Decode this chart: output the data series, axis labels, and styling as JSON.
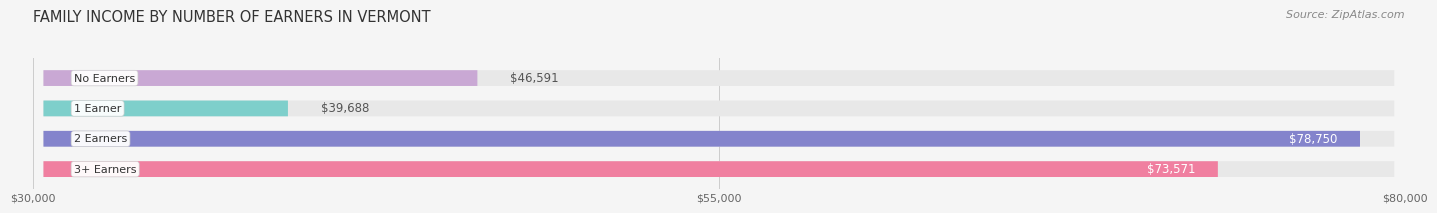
{
  "title": "FAMILY INCOME BY NUMBER OF EARNERS IN VERMONT",
  "source": "Source: ZipAtlas.com",
  "categories": [
    "No Earners",
    "1 Earner",
    "2 Earners",
    "3+ Earners"
  ],
  "values": [
    46591,
    39688,
    78750,
    73571
  ],
  "bar_colors": [
    "#c9a8d4",
    "#7ecfcb",
    "#8484cc",
    "#f07fa0"
  ],
  "bar_bg_color": "#e8e8e8",
  "label_colors": [
    "#555555",
    "#555555",
    "#ffffff",
    "#ffffff"
  ],
  "x_min": 30000,
  "x_max": 80000,
  "x_ticks": [
    30000,
    55000,
    80000
  ],
  "x_tick_labels": [
    "$30,000",
    "$55,000",
    "$80,000"
  ],
  "background_color": "#f5f5f5",
  "title_fontsize": 10.5,
  "source_fontsize": 8,
  "bar_label_fontsize": 8.5,
  "category_fontsize": 8
}
